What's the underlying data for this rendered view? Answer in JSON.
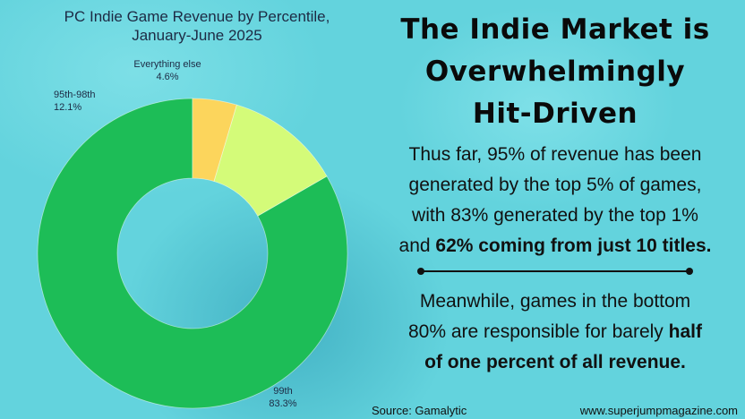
{
  "chart_data": {
    "type": "pie",
    "variant": "donut",
    "title": "PC Indie Game Revenue by Percentile, January-June 2025",
    "slices": [
      {
        "label": "99th",
        "value_text": "83.3%",
        "value": 83.3,
        "color": "#1dbd57"
      },
      {
        "label": "95th-98th",
        "value_text": "12.1%",
        "value": 12.1,
        "color": "#d4fb79"
      },
      {
        "label": "Everything else",
        "value_text": "4.6%",
        "value": 4.6,
        "color": "#fcd55c"
      }
    ]
  },
  "headline": {
    "line1": "The Indie Market is",
    "line2": "Overwhelmingly",
    "line3": "Hit-Driven"
  },
  "paragraph1": {
    "line1": "Thus far, 95% of revenue has been",
    "line2": "generated by the top 5% of games,",
    "line3": "with 83% generated by the top 1%",
    "line4_plain": "and ",
    "line4_bold": "62% coming from just 10 titles."
  },
  "paragraph2": {
    "line1": "Meanwhile, games in the bottom",
    "line2_plain": "80% are responsible for barely ",
    "line2_bold": "half",
    "line3_bold": "of one percent of all revenue."
  },
  "footer": {
    "source": "Source: Gamalytic",
    "website": "www.superjumpmagazine.com"
  }
}
